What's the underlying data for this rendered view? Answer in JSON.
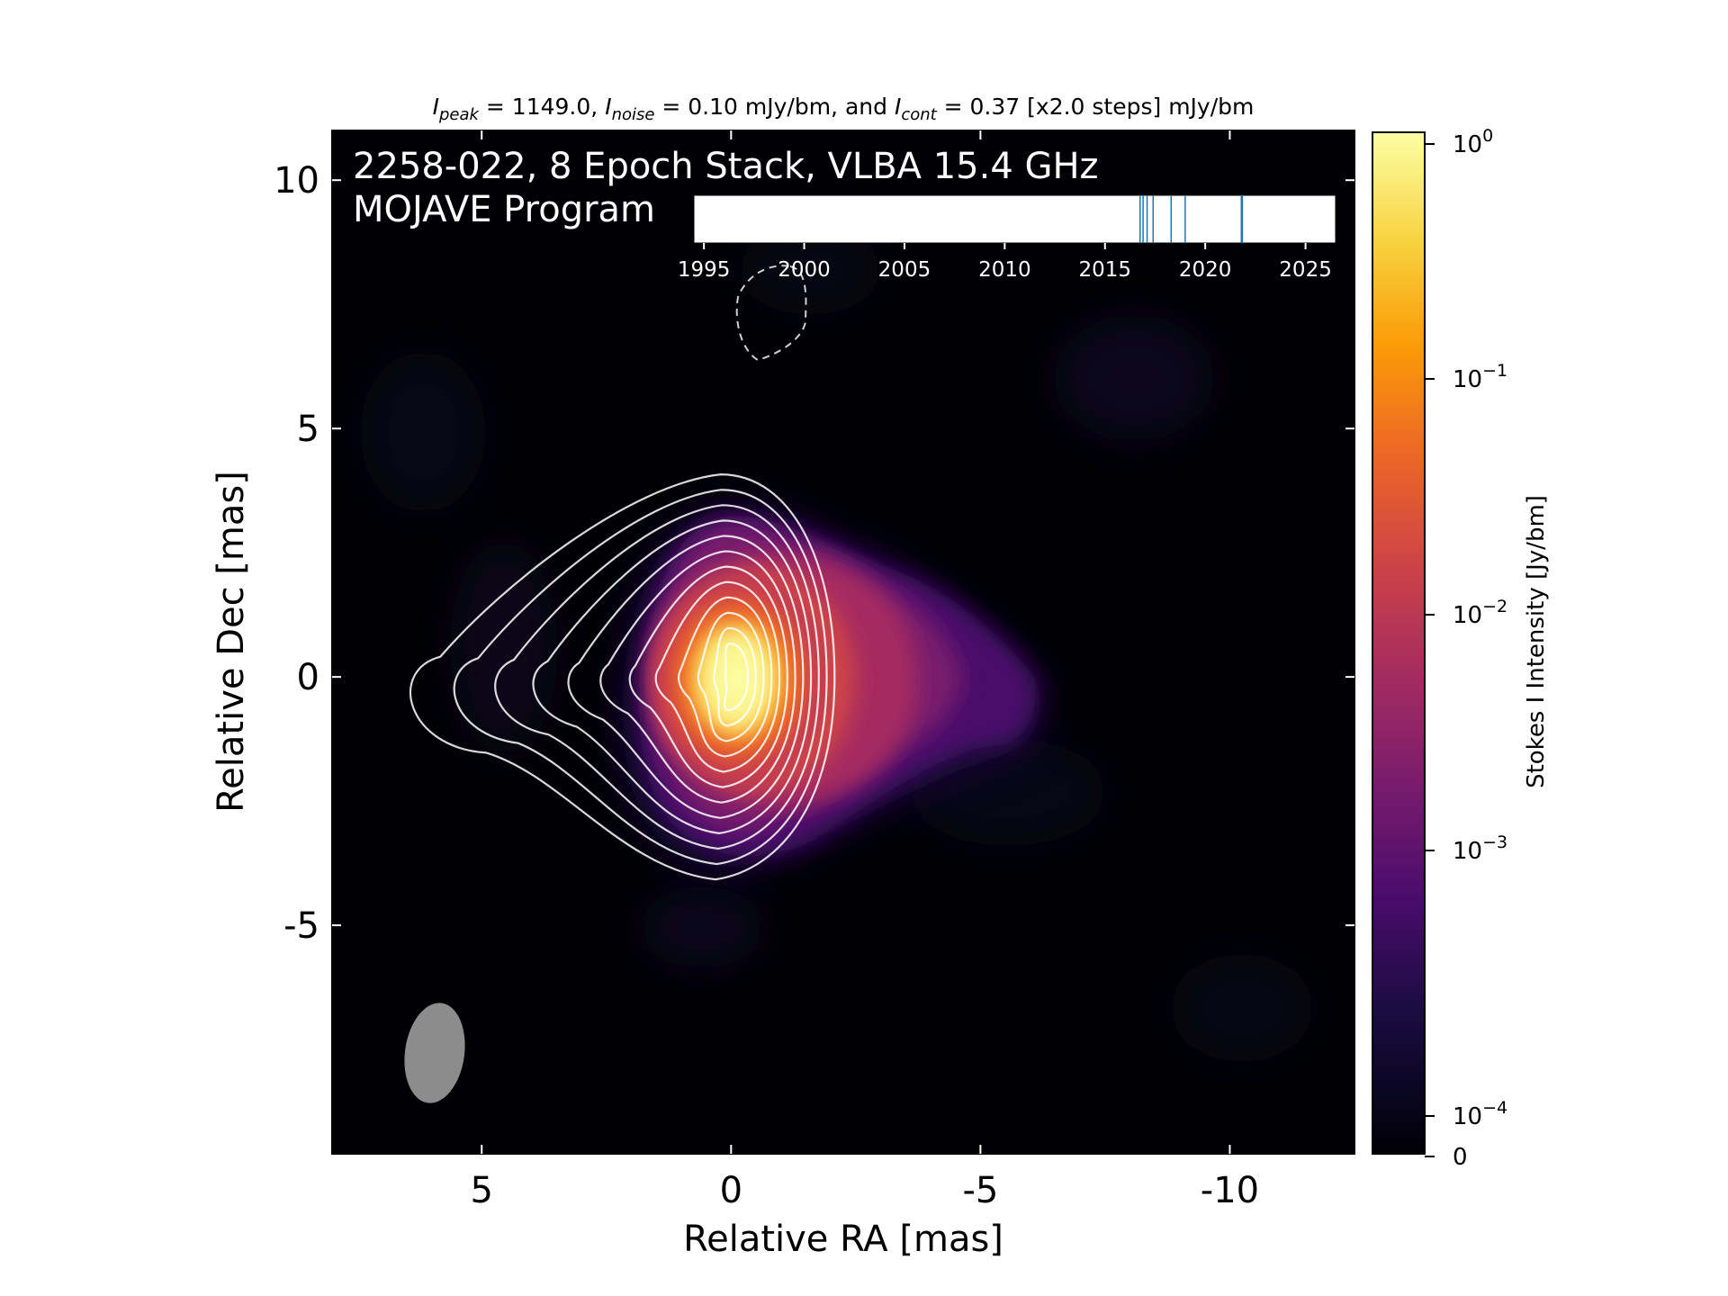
{
  "chart_data": {
    "type": "heatmap",
    "title_parts": {
      "peak_sym": "I",
      "peak_sub": "peak",
      "peak_rest": " = 1149.0, ",
      "noise_sym": "I",
      "noise_sub": "noise",
      "noise_rest": " = 0.10 mJy/bm, and ",
      "cont_sym": "I",
      "cont_sub": "cont",
      "cont_rest": " = 0.37 [x2.0 steps] mJy/bm"
    },
    "overlay_line1": "2258-022, 8 Epoch Stack, VLBA 15.4 GHz",
    "overlay_line2": "MOJAVE Program",
    "xlabel": "Relative RA [mas]",
    "ylabel": "Relative Dec [mas]",
    "xlim": [
      8,
      -12.5
    ],
    "ylim": [
      -9.6,
      11
    ],
    "xticks": [
      5,
      0,
      -5,
      -10
    ],
    "xtick_labels": [
      "5",
      "0",
      "-5",
      "-10"
    ],
    "yticks": [
      10,
      5,
      0,
      -5
    ],
    "ytick_labels": [
      "10",
      "5",
      "0",
      "-5"
    ],
    "colorbar": {
      "label": "Stokes I Intensity [Jy/bm]",
      "scale": "log",
      "tick_labels": [
        {
          "base": "10",
          "exp": "0",
          "value": 1
        },
        {
          "base": "10",
          "exp": "−1",
          "value": 0.1
        },
        {
          "base": "10",
          "exp": "−2",
          "value": 0.01
        },
        {
          "base": "10",
          "exp": "−3",
          "value": 0.001
        },
        {
          "base": "10",
          "exp": "−4",
          "value": 0.0001
        },
        {
          "base": "0",
          "exp": "",
          "value": 0
        }
      ],
      "colormap": "inferno"
    },
    "source": {
      "peak_Jy": 1.149,
      "core_ra": 0,
      "core_dec": 0,
      "jet_direction": "west",
      "jet_extent_mas": 6
    },
    "beam": {
      "ra": 6.1,
      "dec": -7.5,
      "major_mas": 2.0,
      "minor_mas": 1.2,
      "pa_deg": -5
    },
    "contour_levels_count": 12,
    "negative_contour": {
      "ra": -0.5,
      "dec": 7.3
    },
    "epochs": {
      "axis_ticks": [
        "1995",
        "2000",
        "2005",
        "2010",
        "2015",
        "2020",
        "2025"
      ],
      "axis_range": [
        1994.5,
        2026.5
      ],
      "years": [
        2016.75,
        2016.9,
        2017.1,
        2017.4,
        2018.3,
        2019.0,
        2021.8,
        2021.85
      ]
    }
  },
  "colors": {
    "background": "#000004",
    "contour": "#ffffff",
    "epoch_line": "#1f77b4",
    "beam": "#8c8c8c"
  }
}
